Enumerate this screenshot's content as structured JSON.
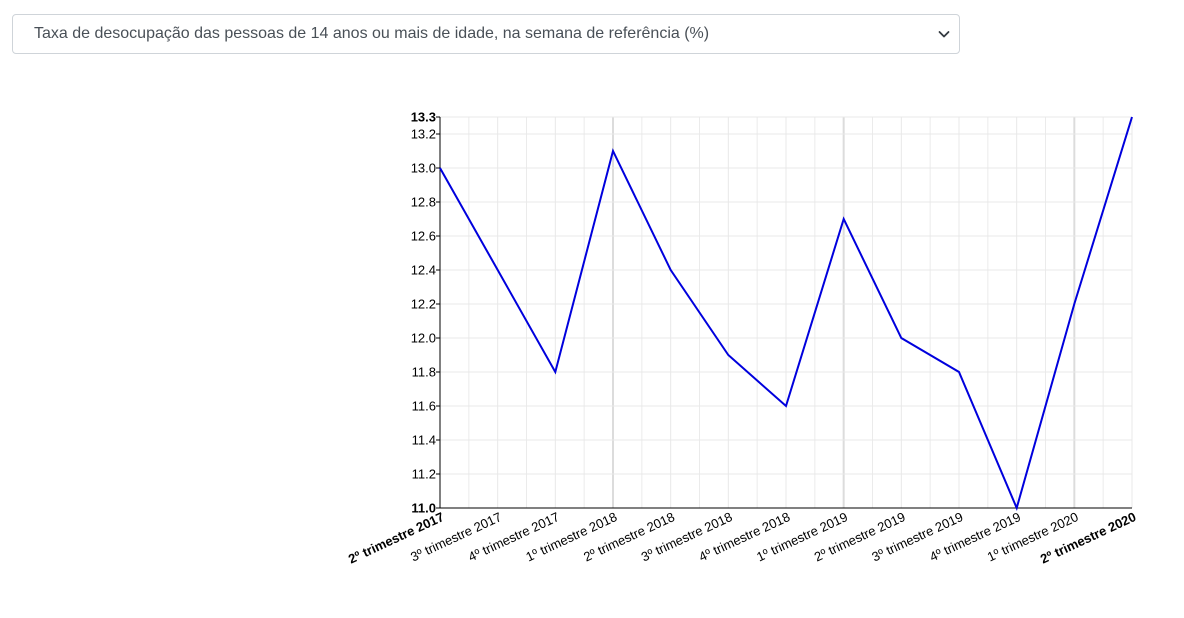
{
  "selector": {
    "selected_label": "Taxa de desocupação das pessoas de 14 anos ou mais de idade, na semana de referência (%)"
  },
  "chart_data": {
    "type": "line",
    "title": "",
    "xlabel": "",
    "ylabel": "",
    "categories": [
      "2º trimestre 2017",
      "3º trimestre 2017",
      "4º trimestre 2017",
      "1º trimestre 2018",
      "2º trimestre 2018",
      "3º trimestre 2018",
      "4º trimestre 2018",
      "1º trimestre 2019",
      "2º trimestre 2019",
      "3º trimestre 2019",
      "4º trimestre 2019",
      "1º trimestre 2020",
      "2º trimestre 2020"
    ],
    "series": [
      {
        "values": [
          13.0,
          12.4,
          11.8,
          13.1,
          12.4,
          11.9,
          11.6,
          12.7,
          12.0,
          11.8,
          11.0,
          12.2,
          13.3
        ],
        "color": "#0000dd"
      }
    ],
    "ylim": [
      11.0,
      13.3
    ],
    "yticks": [
      {
        "value": 11.0,
        "label": "11.0",
        "bold": true
      },
      {
        "value": 11.2,
        "label": "11.2",
        "bold": false
      },
      {
        "value": 11.4,
        "label": "11.4",
        "bold": false
      },
      {
        "value": 11.6,
        "label": "11.6",
        "bold": false
      },
      {
        "value": 11.8,
        "label": "11.8",
        "bold": false
      },
      {
        "value": 12.0,
        "label": "12.0",
        "bold": false
      },
      {
        "value": 12.2,
        "label": "12.2",
        "bold": false
      },
      {
        "value": 12.4,
        "label": "12.4",
        "bold": false
      },
      {
        "value": 12.6,
        "label": "12.6",
        "bold": false
      },
      {
        "value": 12.8,
        "label": "12.8",
        "bold": false
      },
      {
        "value": 13.0,
        "label": "13.0",
        "bold": false
      },
      {
        "value": 13.2,
        "label": "13.2",
        "bold": false
      },
      {
        "value": 13.3,
        "label": "13.3",
        "bold": true
      }
    ],
    "bold_categories": [
      "2º trimestre 2017",
      "2º trimestre 2020"
    ],
    "grid": true,
    "legend": "none"
  }
}
